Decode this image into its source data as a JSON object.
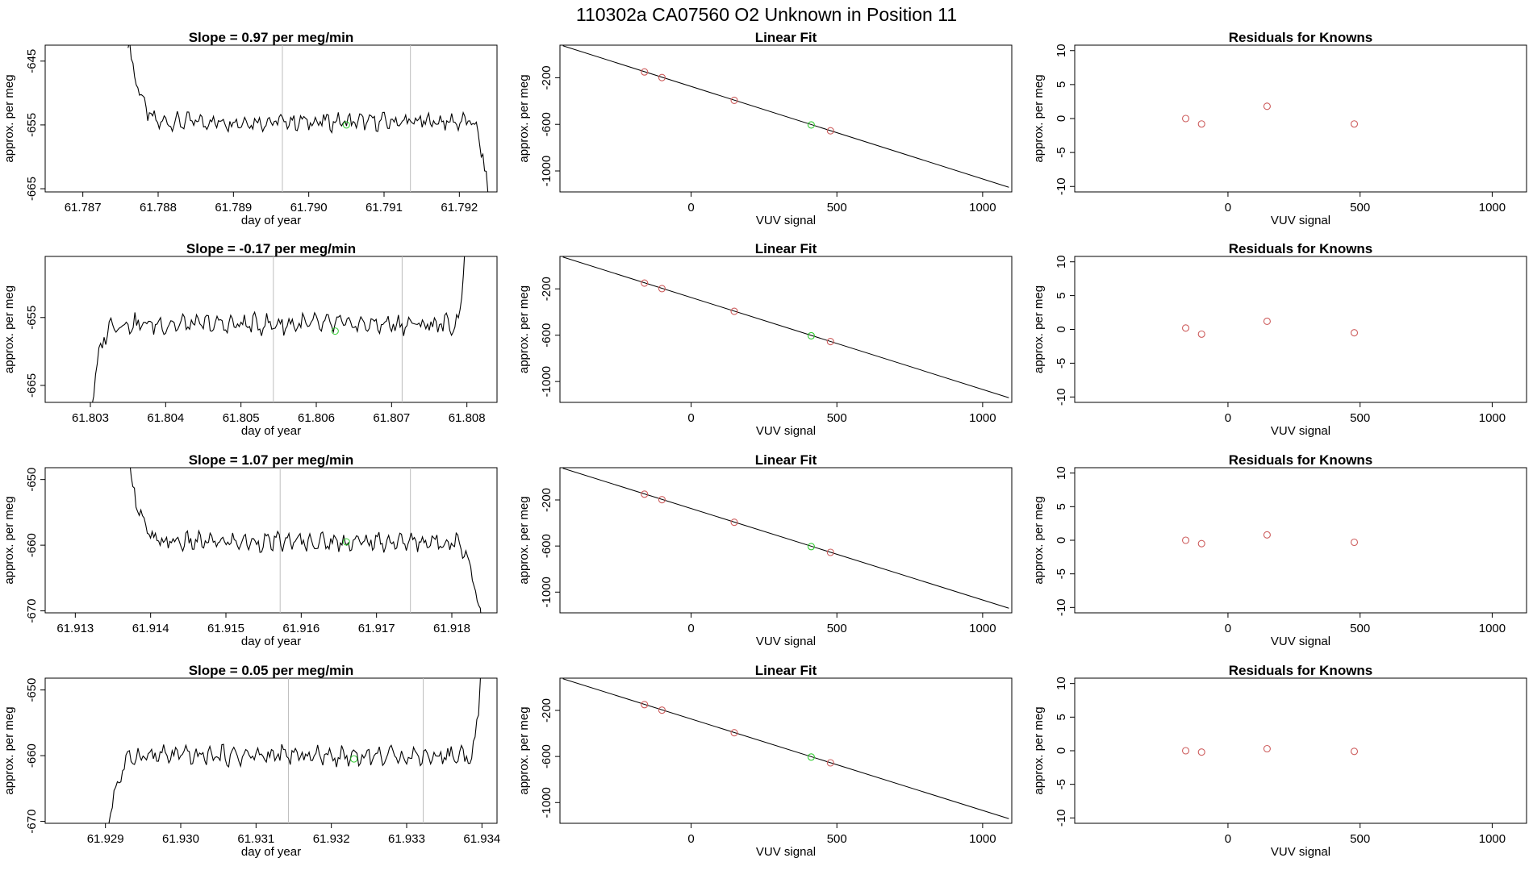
{
  "page_title": "110302a      CA07560    O2 Unknown in Position  11",
  "colors": {
    "trace": "#000000",
    "vline": "#bebebe",
    "known_point": "#cd5c5c",
    "unknown_point": "#32cd32",
    "fit_line": "#000000"
  },
  "chart_data": [
    {
      "panel": "row1-timeseries",
      "type": "line",
      "title": "Slope =  0.97  per meg/min",
      "xlabel": "day of year",
      "ylabel": "approx. per meg",
      "xlim": [
        61.7865,
        61.7925
      ],
      "ylim": [
        -665.5,
        -642.5
      ],
      "xticks": [
        61.787,
        61.788,
        61.789,
        61.79,
        61.791,
        61.792
      ],
      "xtick_labels": [
        "61.787",
        "61.788",
        "61.789",
        "61.790",
        "61.791",
        "61.792"
      ],
      "yticks": [
        -665,
        -655,
        -645
      ],
      "ytick_labels": [
        "-665",
        "-655",
        "-645"
      ],
      "vlines": [
        61.78965,
        61.79135
      ],
      "trace": {
        "start": 61.7876,
        "end": 61.7924,
        "base": -654.5,
        "amp": 1.7,
        "rise_end": 61.788,
        "rise_top": -642,
        "fall_start": 61.79215,
        "fall_bottom": -668
      },
      "unknown_point": {
        "x": 61.7905,
        "y": -655.0
      },
      "grid": false
    },
    {
      "panel": "row1-linearfit",
      "type": "scatter",
      "title": "Linear Fit",
      "xlabel": "VUV signal",
      "ylabel": "approx. per meg",
      "xlim": [
        -450,
        1100
      ],
      "ylim": [
        -1180,
        80
      ],
      "xticks": [
        0,
        500,
        1000
      ],
      "xtick_labels": [
        "0",
        "500",
        "1000"
      ],
      "yticks": [
        -1000,
        -600,
        -200
      ],
      "ytick_labels": [
        "-1000",
        "-600",
        "-200"
      ],
      "fit_line": {
        "x1": -440,
        "y1": 75,
        "x2": 1090,
        "y2": -1140
      },
      "known_points": [
        {
          "x": -160,
          "y": -150
        },
        {
          "x": -100,
          "y": -198
        },
        {
          "x": 148,
          "y": -394
        },
        {
          "x": 478,
          "y": -655
        }
      ],
      "unknown_points": [
        {
          "x": 412,
          "y": -605
        }
      ]
    },
    {
      "panel": "row1-residuals",
      "type": "scatter",
      "title": "Residuals for Knowns",
      "xlabel": "VUV signal",
      "ylabel": "approx. per meg",
      "xlim": [
        -580,
        1130
      ],
      "ylim": [
        -10.8,
        10.8
      ],
      "xticks": [
        0,
        500,
        1000
      ],
      "xtick_labels": [
        "0",
        "500",
        "1000"
      ],
      "yticks": [
        -10,
        -5,
        0,
        5,
        10
      ],
      "ytick_labels": [
        "-10",
        "-5",
        "0",
        "5",
        "10"
      ],
      "known_points": [
        {
          "x": -160,
          "y": 0.0
        },
        {
          "x": -100,
          "y": -0.8
        },
        {
          "x": 148,
          "y": 1.8
        },
        {
          "x": 478,
          "y": -0.8
        }
      ]
    },
    {
      "panel": "row2-timeseries",
      "type": "line",
      "title": "Slope =  -0.17  per meg/min",
      "xlabel": "day of year",
      "ylabel": "approx. per meg",
      "xlim": [
        61.8024,
        61.8084
      ],
      "ylim": [
        -667.5,
        -646
      ],
      "xticks": [
        61.803,
        61.804,
        61.805,
        61.806,
        61.807,
        61.808
      ],
      "xtick_labels": [
        "61.803",
        "61.804",
        "61.805",
        "61.806",
        "61.807",
        "61.808"
      ],
      "yticks": [
        -665,
        -655
      ],
      "ytick_labels": [
        "-665",
        "-655"
      ],
      "vlines": [
        61.80543,
        61.80714
      ],
      "trace": {
        "start": 61.803,
        "end": 61.808,
        "base": -656.0,
        "amp": 1.8,
        "rise_end": 61.8033,
        "rise_top": -669,
        "fall_start": 61.80785,
        "fall_bottom": -640
      },
      "unknown_point": {
        "x": 61.80625,
        "y": -657.0
      },
      "grid": false
    },
    {
      "panel": "row2-linearfit",
      "type": "scatter",
      "title": "Linear Fit",
      "xlabel": "VUV signal",
      "ylabel": "approx. per meg",
      "xlim": [
        -450,
        1100
      ],
      "ylim": [
        -1180,
        80
      ],
      "xticks": [
        0,
        500,
        1000
      ],
      "xtick_labels": [
        "0",
        "500",
        "1000"
      ],
      "yticks": [
        -1000,
        -600,
        -200
      ],
      "ytick_labels": [
        "-1000",
        "-600",
        "-200"
      ],
      "fit_line": {
        "x1": -440,
        "y1": 75,
        "x2": 1090,
        "y2": -1140
      },
      "known_points": [
        {
          "x": -160,
          "y": -150
        },
        {
          "x": -100,
          "y": -198
        },
        {
          "x": 148,
          "y": -394
        },
        {
          "x": 478,
          "y": -655
        }
      ],
      "unknown_points": [
        {
          "x": 412,
          "y": -605
        }
      ]
    },
    {
      "panel": "row2-residuals",
      "type": "scatter",
      "title": "Residuals for Knowns",
      "xlabel": "VUV signal",
      "ylabel": "approx. per meg",
      "xlim": [
        -580,
        1130
      ],
      "ylim": [
        -10.8,
        10.8
      ],
      "xticks": [
        0,
        500,
        1000
      ],
      "xtick_labels": [
        "0",
        "500",
        "1000"
      ],
      "yticks": [
        -10,
        -5,
        0,
        5,
        10
      ],
      "ytick_labels": [
        "-10",
        "-5",
        "0",
        "5",
        "10"
      ],
      "known_points": [
        {
          "x": -160,
          "y": 0.2
        },
        {
          "x": -100,
          "y": -0.7
        },
        {
          "x": 148,
          "y": 1.2
        },
        {
          "x": 478,
          "y": -0.5
        }
      ]
    },
    {
      "panel": "row3-timeseries",
      "type": "line",
      "title": "Slope =  1.07  per meg/min",
      "xlabel": "day of year",
      "ylabel": "approx. per meg",
      "xlim": [
        61.9126,
        61.9186
      ],
      "ylim": [
        -670.3,
        -648.2
      ],
      "xticks": [
        61.913,
        61.914,
        61.915,
        61.916,
        61.917,
        61.918
      ],
      "xtick_labels": [
        "61.913",
        "61.914",
        "61.915",
        "61.916",
        "61.917",
        "61.918"
      ],
      "yticks": [
        -670,
        -660,
        -650
      ],
      "ytick_labels": [
        "-670",
        "-660",
        "-650"
      ],
      "vlines": [
        61.91572,
        61.91745
      ],
      "trace": {
        "start": 61.9137,
        "end": 61.9184,
        "base": -659.5,
        "amp": 1.7,
        "rise_end": 61.9141,
        "rise_top": -647,
        "fall_start": 61.91805,
        "fall_bottom": -672
      },
      "unknown_point": {
        "x": 61.9166,
        "y": -659.5
      },
      "grid": false
    },
    {
      "panel": "row3-linearfit",
      "type": "scatter",
      "title": "Linear Fit",
      "xlabel": "VUV signal",
      "ylabel": "approx. per meg",
      "xlim": [
        -450,
        1100
      ],
      "ylim": [
        -1180,
        80
      ],
      "xticks": [
        0,
        500,
        1000
      ],
      "xtick_labels": [
        "0",
        "500",
        "1000"
      ],
      "yticks": [
        -1000,
        -600,
        -200
      ],
      "ytick_labels": [
        "-1000",
        "-600",
        "-200"
      ],
      "fit_line": {
        "x1": -440,
        "y1": 75,
        "x2": 1090,
        "y2": -1140
      },
      "known_points": [
        {
          "x": -160,
          "y": -150
        },
        {
          "x": -100,
          "y": -198
        },
        {
          "x": 148,
          "y": -394
        },
        {
          "x": 478,
          "y": -655
        }
      ],
      "unknown_points": [
        {
          "x": 412,
          "y": -605
        }
      ]
    },
    {
      "panel": "row3-residuals",
      "type": "scatter",
      "title": "Residuals for Knowns",
      "xlabel": "VUV signal",
      "ylabel": "approx. per meg",
      "xlim": [
        -580,
        1130
      ],
      "ylim": [
        -10.8,
        10.8
      ],
      "xticks": [
        0,
        500,
        1000
      ],
      "xtick_labels": [
        "0",
        "500",
        "1000"
      ],
      "yticks": [
        -10,
        -5,
        0,
        5,
        10
      ],
      "ytick_labels": [
        "-10",
        "-5",
        "0",
        "5",
        "10"
      ],
      "known_points": [
        {
          "x": -160,
          "y": 0.0
        },
        {
          "x": -100,
          "y": -0.5
        },
        {
          "x": 148,
          "y": 0.8
        },
        {
          "x": 478,
          "y": -0.3
        }
      ]
    },
    {
      "panel": "row4-timeseries",
      "type": "line",
      "title": "Slope =  0.05  per meg/min",
      "xlabel": "day of year",
      "ylabel": "approx. per meg",
      "xlim": [
        61.9282,
        61.9342
      ],
      "ylim": [
        -670.3,
        -648.2
      ],
      "xticks": [
        61.929,
        61.93,
        61.931,
        61.932,
        61.933,
        61.934
      ],
      "xtick_labels": [
        "61.929",
        "61.930",
        "61.931",
        "61.932",
        "61.933",
        "61.934"
      ],
      "yticks": [
        -670,
        -660,
        -650
      ],
      "ytick_labels": [
        "-670",
        "-660",
        "-650"
      ],
      "vlines": [
        61.93143,
        61.93322
      ],
      "trace": {
        "start": 61.929,
        "end": 61.934,
        "base": -660.0,
        "amp": 1.8,
        "rise_end": 61.9294,
        "rise_top": -672,
        "fall_start": 61.93385,
        "fall_bottom": -644
      },
      "unknown_point": {
        "x": 61.9323,
        "y": -660.5
      },
      "grid": false
    },
    {
      "panel": "row4-linearfit",
      "type": "scatter",
      "title": "Linear Fit",
      "xlabel": "VUV signal",
      "ylabel": "approx. per meg",
      "xlim": [
        -450,
        1100
      ],
      "ylim": [
        -1180,
        80
      ],
      "xticks": [
        0,
        500,
        1000
      ],
      "xtick_labels": [
        "0",
        "500",
        "1000"
      ],
      "yticks": [
        -1000,
        -600,
        -200
      ],
      "ytick_labels": [
        "-1000",
        "-600",
        "-200"
      ],
      "fit_line": {
        "x1": -440,
        "y1": 75,
        "x2": 1090,
        "y2": -1140
      },
      "known_points": [
        {
          "x": -160,
          "y": -150
        },
        {
          "x": -100,
          "y": -198
        },
        {
          "x": 148,
          "y": -394
        },
        {
          "x": 478,
          "y": -655
        }
      ],
      "unknown_points": [
        {
          "x": 412,
          "y": -605
        }
      ]
    },
    {
      "panel": "row4-residuals",
      "type": "scatter",
      "title": "Residuals for Knowns",
      "xlabel": "VUV signal",
      "ylabel": "approx. per meg",
      "xlim": [
        -580,
        1130
      ],
      "ylim": [
        -10.8,
        10.8
      ],
      "xticks": [
        0,
        500,
        1000
      ],
      "xtick_labels": [
        "0",
        "500",
        "1000"
      ],
      "yticks": [
        -10,
        -5,
        0,
        5,
        10
      ],
      "ytick_labels": [
        "-10",
        "-5",
        "0",
        "5",
        "10"
      ],
      "known_points": [
        {
          "x": -160,
          "y": 0.0
        },
        {
          "x": -100,
          "y": -0.2
        },
        {
          "x": 148,
          "y": 0.3
        },
        {
          "x": 478,
          "y": -0.1
        }
      ]
    }
  ]
}
